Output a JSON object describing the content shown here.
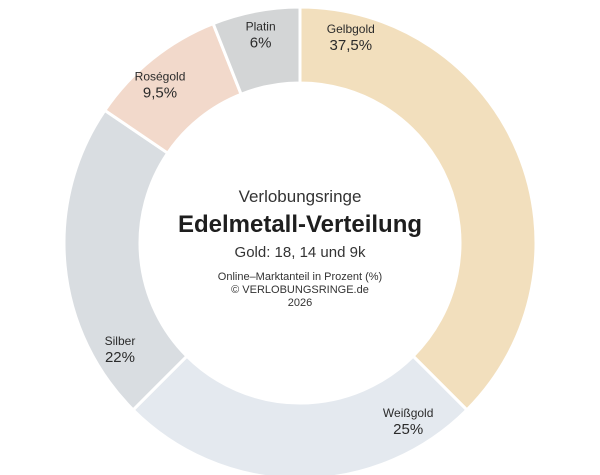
{
  "chart_data": {
    "type": "pie",
    "subtitle": "Verlobungsringe",
    "title": "Edelmetall-Verteilung",
    "detail": "Gold: 18, 14 und 9k",
    "caption": "Online–Marktanteil in Prozent (%)",
    "copyright": "© VERLOBUNGSRINGE.de",
    "year": "2026",
    "slices": [
      {
        "name": "Gelbgold",
        "value": 37.5,
        "value_label": "37,5%",
        "color": "#f2dfbd"
      },
      {
        "name": "Weißgold",
        "value": 25,
        "value_label": "25%",
        "color": "#e4e9ef"
      },
      {
        "name": "Silber",
        "value": 22,
        "value_label": "22%",
        "color": "#d9dde1"
      },
      {
        "name": "Roségold",
        "value": 9.5,
        "value_label": "9,5%",
        "color": "#f2d9cb"
      },
      {
        "name": "Platin",
        "value": 6,
        "value_label": "6%",
        "color": "#d3d5d6"
      }
    ]
  }
}
